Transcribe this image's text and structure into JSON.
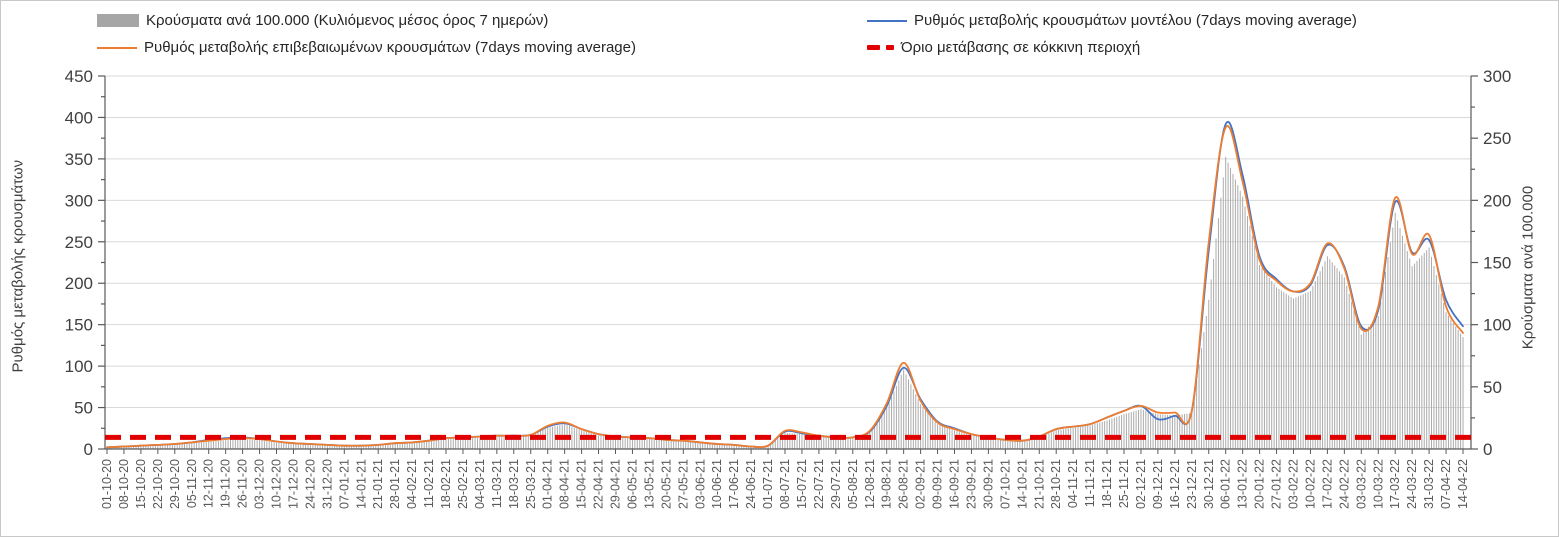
{
  "legend": {
    "items": [
      {
        "label": "Κρούσματα ανά 100.000 (Κυλιόμενος μέσος όρος 7 ημερών)",
        "swatch": "gray-bar",
        "color": "#a6a6a6"
      },
      {
        "label": "Ρυθμός μεταβολής επιβεβαιωμένων κρουσμάτων (7days moving average)",
        "swatch": "orange-line",
        "color": "#ED7D31"
      },
      {
        "label": "Ρυθμός μεταβολής κρουσμάτων μοντέλου (7days moving average)",
        "swatch": "blue-line",
        "color": "#4472C4"
      },
      {
        "label": "Όριο μετάβασης σε κόκκινη περιοχή",
        "swatch": "red-dashes",
        "color": "#e00000"
      }
    ]
  },
  "chart_data": {
    "type": "bar+line",
    "grid": "horizontal",
    "legend_position": "top",
    "left_axis": {
      "title": "Ρυθμός μεταβολής κρουσμάτων",
      "min": 0,
      "max": 450,
      "major_step": 50,
      "minor_step": 25
    },
    "right_axis": {
      "title": "Κρούσματα ανά 100.000",
      "min": 0,
      "max": 300,
      "major_step": 50,
      "minor_step": 25
    },
    "x_labels": [
      "01-10-20",
      "08-10-20",
      "15-10-20",
      "22-10-20",
      "29-10-20",
      "05-11-20",
      "12-11-20",
      "19-11-20",
      "26-11-20",
      "03-12-20",
      "10-12-20",
      "17-12-20",
      "24-12-20",
      "31-12-20",
      "07-01-21",
      "14-01-21",
      "21-01-21",
      "28-01-21",
      "04-02-21",
      "11-02-21",
      "18-02-21",
      "25-02-21",
      "04-03-21",
      "11-03-21",
      "18-03-21",
      "25-03-21",
      "01-04-21",
      "08-04-21",
      "15-04-21",
      "22-04-21",
      "29-04-21",
      "06-05-21",
      "13-05-21",
      "20-05-21",
      "27-05-21",
      "03-06-21",
      "10-06-21",
      "17-06-21",
      "24-06-21",
      "01-07-21",
      "08-07-21",
      "15-07-21",
      "22-07-21",
      "29-07-21",
      "05-08-21",
      "12-08-21",
      "19-08-21",
      "26-08-21",
      "02-09-21",
      "09-09-21",
      "16-09-21",
      "23-09-21",
      "30-09-21",
      "07-10-21",
      "14-10-21",
      "21-10-21",
      "28-10-21",
      "04-11-21",
      "11-11-21",
      "18-11-21",
      "25-11-21",
      "02-12-21",
      "09-12-21",
      "16-12-21",
      "23-12-21",
      "30-12-21",
      "06-01-22",
      "13-01-22",
      "20-01-22",
      "27-01-22",
      "03-02-22",
      "10-02-22",
      "17-02-22",
      "24-02-22",
      "03-03-22",
      "10-03-22",
      "17-03-22",
      "24-03-22",
      "31-03-22",
      "07-04-22",
      "14-04-22"
    ],
    "series": [
      {
        "name": "Κρούσματα ανά 100.000 (Κυλιόμενος μέσος όρος 7 ημερών)",
        "type": "bar",
        "axis": "right",
        "color": "#ababab",
        "values": [
          1,
          2,
          2,
          3,
          4,
          5,
          6,
          7,
          8,
          7,
          5,
          4,
          4,
          3,
          2,
          2,
          3,
          4,
          5,
          6,
          8,
          9,
          9,
          10,
          10,
          11,
          17,
          20,
          15,
          11,
          9,
          9,
          8,
          7,
          6,
          5,
          4,
          3,
          2,
          2,
          13,
          12,
          10,
          9,
          9,
          13,
          33,
          64,
          36,
          20,
          15,
          11,
          9,
          7,
          6,
          9,
          15,
          17,
          19,
          23,
          28,
          32,
          28,
          27,
          29,
          120,
          235,
          203,
          148,
          130,
          121,
          127,
          155,
          138,
          92,
          107,
          190,
          147,
          162,
          110,
          90
        ]
      },
      {
        "name": "Ρυθμός μεταβολής κρουσμάτων μοντέλου (7days moving average)",
        "type": "line",
        "axis": "left",
        "color": "#4472C4",
        "values": [
          2,
          3,
          4,
          5,
          6,
          8,
          11,
          13,
          14,
          12,
          9,
          7,
          6,
          5,
          4,
          4,
          5,
          7,
          8,
          10,
          13,
          14,
          15,
          16,
          16,
          17,
          27,
          31,
          24,
          18,
          15,
          14,
          13,
          11,
          10,
          8,
          6,
          5,
          3,
          4,
          21,
          19,
          16,
          14,
          14,
          21,
          52,
          98,
          60,
          33,
          25,
          18,
          14,
          11,
          10,
          15,
          24,
          27,
          30,
          38,
          46,
          52,
          36,
          40,
          46,
          240,
          392,
          330,
          232,
          205,
          190,
          198,
          246,
          220,
          148,
          168,
          298,
          237,
          252,
          180,
          148
        ]
      },
      {
        "name": "Ρυθμός μεταβολής επιβεβαιωμένων κρουσμάτων (7days moving average)",
        "type": "line",
        "axis": "left",
        "color": "#ED7D31",
        "values": [
          2,
          3,
          4,
          5,
          6,
          8,
          10,
          12,
          13,
          12,
          9,
          7,
          6,
          5,
          4,
          4,
          5,
          7,
          8,
          10,
          13,
          14,
          15,
          16,
          16,
          17,
          28,
          32,
          24,
          18,
          15,
          14,
          13,
          11,
          10,
          8,
          6,
          5,
          3,
          4,
          22,
          20,
          16,
          14,
          14,
          22,
          55,
          104,
          58,
          32,
          24,
          18,
          14,
          11,
          10,
          15,
          24,
          27,
          30,
          38,
          46,
          52,
          44,
          44,
          46,
          250,
          388,
          322,
          228,
          203,
          190,
          200,
          248,
          218,
          145,
          172,
          303,
          235,
          258,
          172,
          140
        ]
      },
      {
        "name": "Όριο μετάβασης σε κόκκινη περιοχή",
        "type": "threshold",
        "axis": "left",
        "color": "#e00000",
        "style": "dashed",
        "value": 14
      }
    ]
  }
}
